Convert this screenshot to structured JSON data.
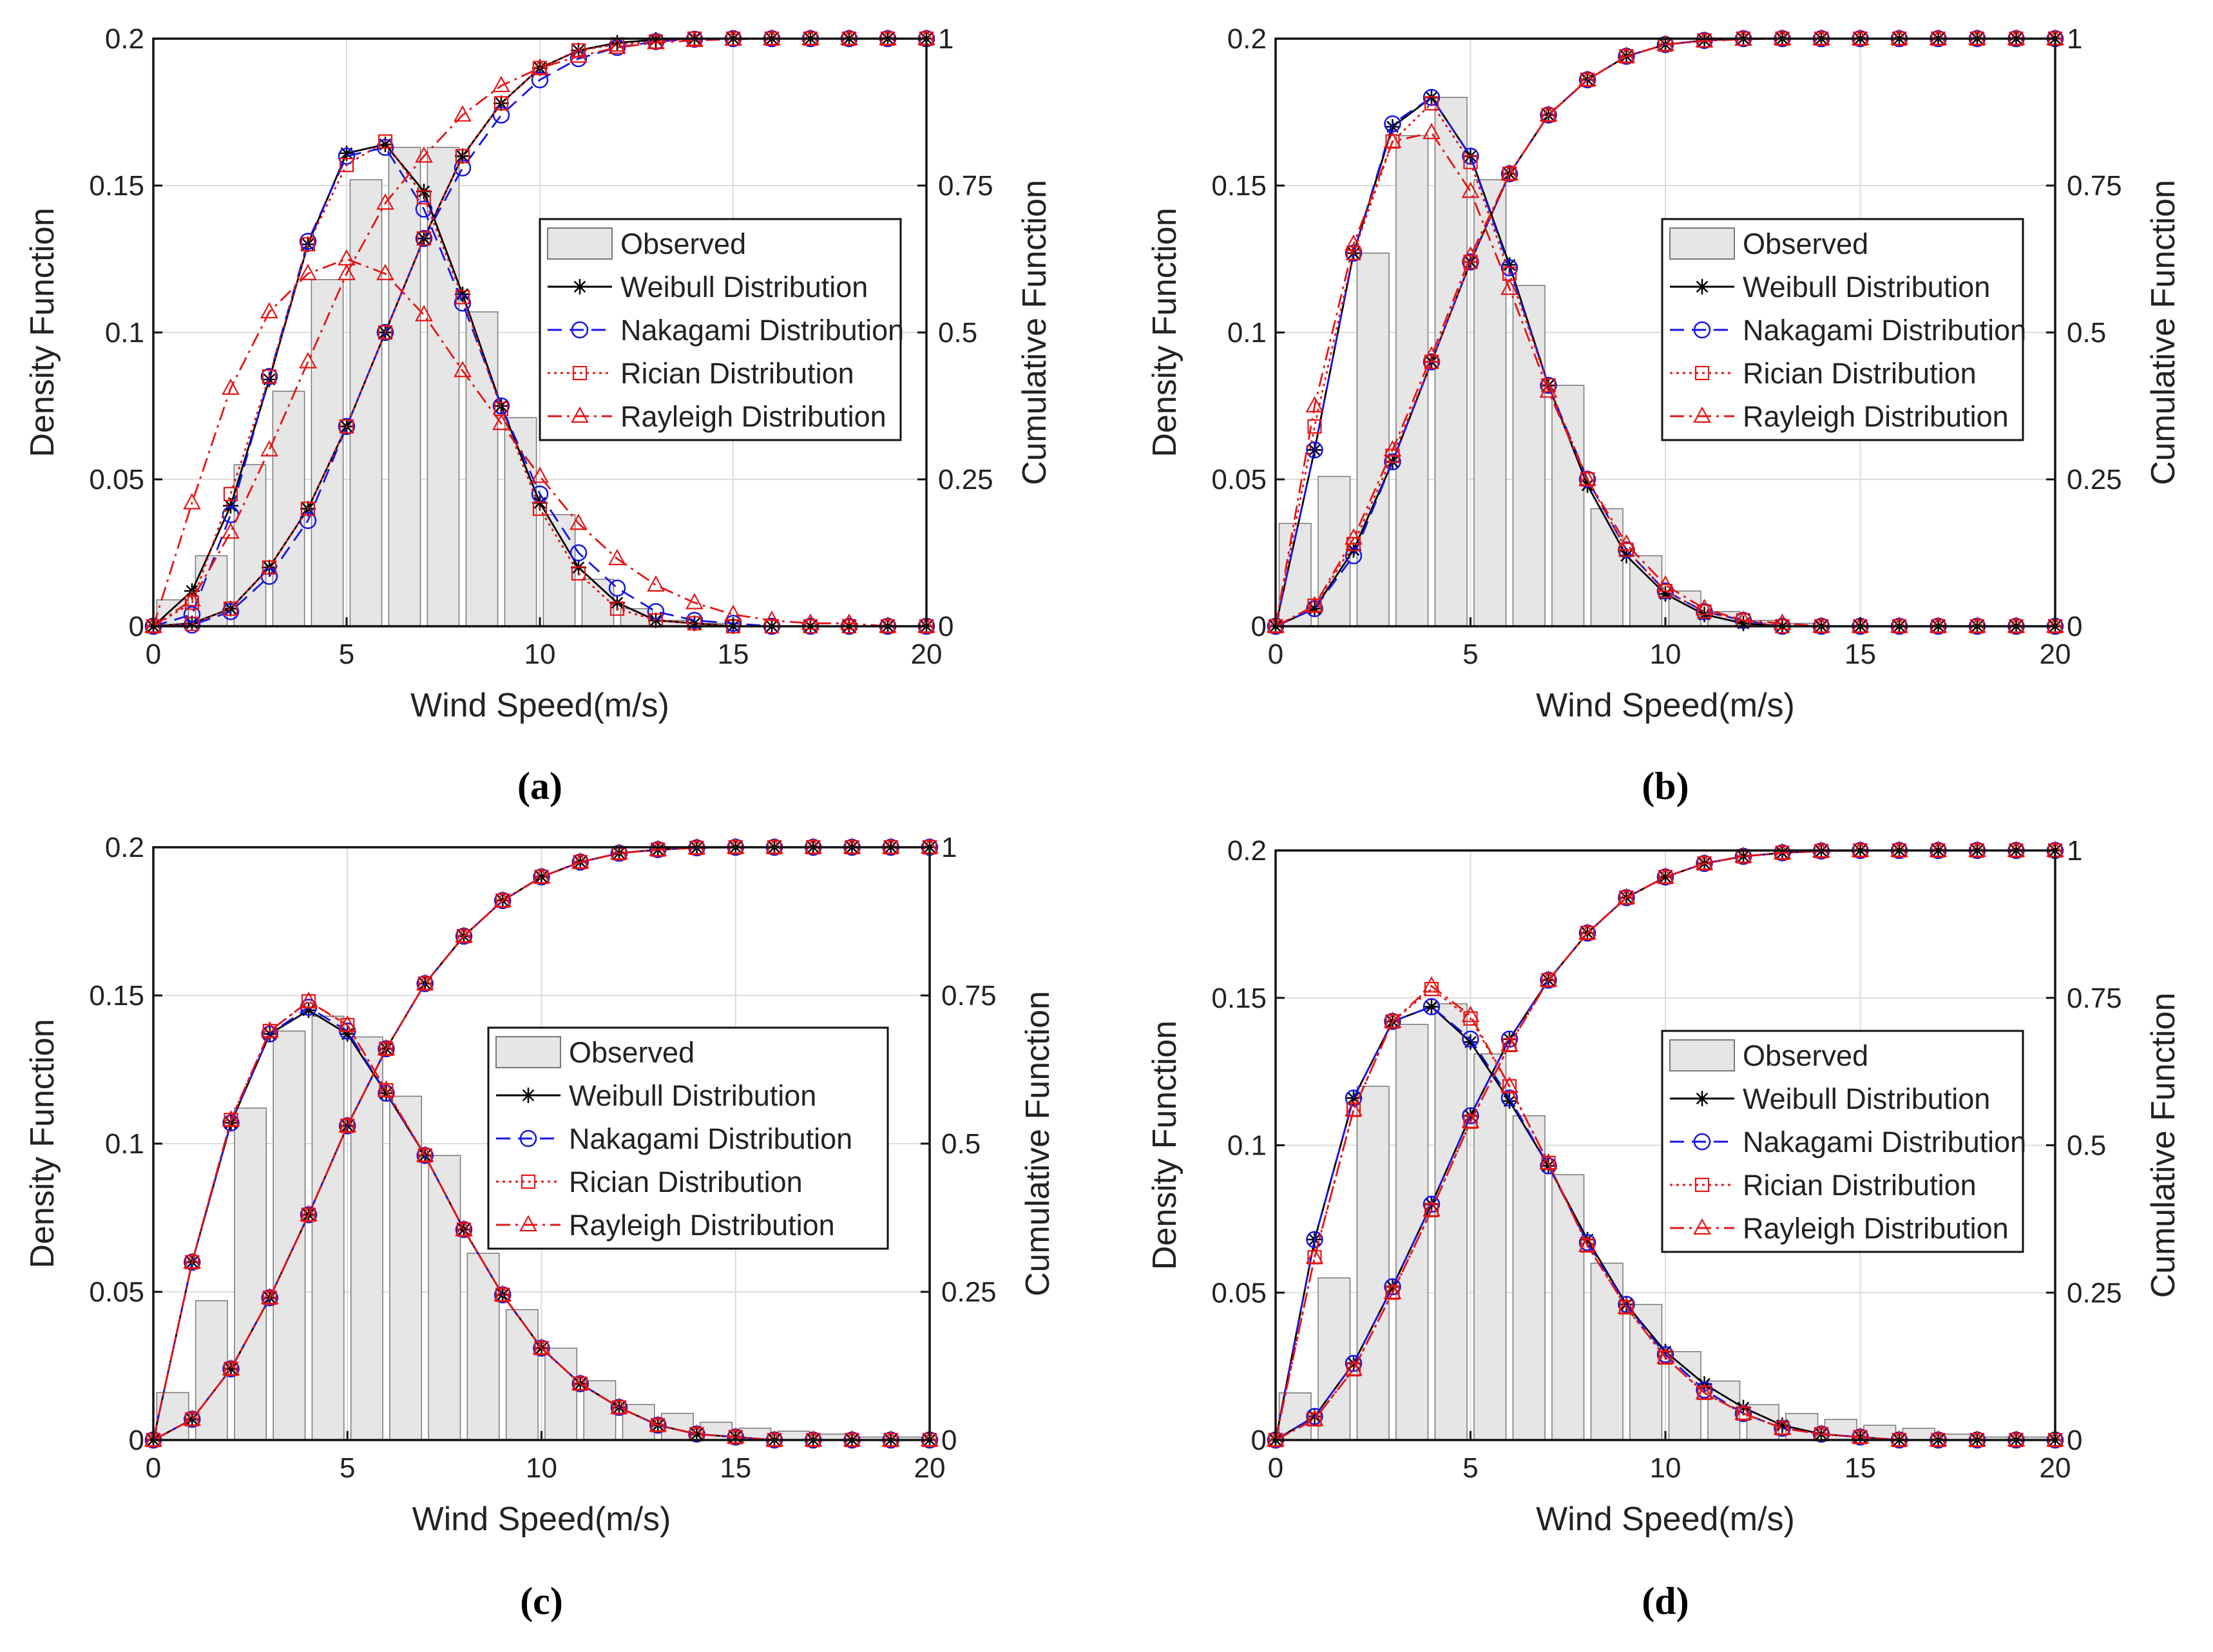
{
  "x_axis": {
    "min": 0,
    "max": 20,
    "ticks": [
      0,
      5,
      10,
      15,
      20
    ],
    "label": "Wind Speed(m/s)"
  },
  "y_left_axis": {
    "min": 0,
    "max": 0.2,
    "ticks": [
      0,
      0.05,
      0.1,
      0.15,
      0.2
    ],
    "tick_labels": [
      "0",
      "0.05",
      "0.1",
      "0.15",
      "0.2"
    ],
    "label": "Density Function"
  },
  "y_right_axis": {
    "min": 0,
    "max": 1,
    "ticks": [
      0,
      0.25,
      0.5,
      0.75,
      1
    ],
    "tick_labels": [
      "0",
      "0.25",
      "0.5",
      "0.75",
      "1"
    ],
    "label": "Cumulative Function"
  },
  "legend": [
    {
      "label": "Observed",
      "key": "observed"
    },
    {
      "label": "Weibull Distribution",
      "key": "weibull"
    },
    {
      "label": "Nakagami Distribution",
      "key": "nakagami"
    },
    {
      "label": "Rician Distribution",
      "key": "rician"
    },
    {
      "label": "Rayleigh Distribution",
      "key": "rayleigh"
    }
  ],
  "colors": {
    "weibull": "#000000",
    "nakagami": "#1414e6",
    "rician": "#e61414",
    "rayleigh": "#e61414",
    "bar_fill": "#e6e6e6",
    "bar_stroke": "#777777",
    "grid": "#dcdcdc"
  },
  "chart_data": [
    {
      "type": "bar",
      "panel": "a",
      "caption": "(a)",
      "x": [
        0,
        1,
        2,
        3,
        4,
        5,
        6,
        7,
        8,
        9,
        10,
        11,
        12,
        13,
        14,
        15,
        16,
        17,
        18,
        19,
        20
      ],
      "bar_centers": [
        0.5,
        1.5,
        2.5,
        3.5,
        4.5,
        5.5,
        6.5,
        7.5,
        8.5,
        9.5,
        10.5,
        11.5,
        12.5,
        13.5,
        14.5,
        15.5,
        16.5,
        17.5,
        18.5,
        19.5
      ],
      "observed": [
        0.009,
        0.024,
        0.055,
        0.08,
        0.118,
        0.152,
        0.163,
        0.163,
        0.107,
        0.071,
        0.038,
        0.016,
        0.006,
        0.002,
        0.001,
        0,
        0,
        0,
        0,
        0
      ],
      "series": [
        {
          "name": "Weibull Distribution",
          "key": "weibull",
          "pdf": [
            0,
            0.012,
            0.041,
            0.084,
            0.13,
            0.161,
            0.164,
            0.148,
            0.113,
            0.075,
            0.042,
            0.02,
            0.008,
            0.002,
            0.001,
            0,
            0,
            0,
            0,
            0,
            0
          ],
          "cdf": [
            0,
            0.005,
            0.03,
            0.1,
            0.2,
            0.34,
            0.5,
            0.66,
            0.8,
            0.89,
            0.95,
            0.98,
            0.993,
            0.998,
            1,
            1,
            1,
            1,
            1,
            1,
            1
          ]
        },
        {
          "name": "Nakagami Distribution",
          "key": "nakagami",
          "pdf": [
            0,
            0.004,
            0.038,
            0.085,
            0.131,
            0.16,
            0.163,
            0.142,
            0.11,
            0.075,
            0.045,
            0.025,
            0.013,
            0.005,
            0.002,
            0.001,
            0,
            0,
            0,
            0,
            0
          ],
          "cdf": [
            0,
            0.002,
            0.025,
            0.085,
            0.18,
            0.34,
            0.5,
            0.66,
            0.78,
            0.87,
            0.93,
            0.966,
            0.985,
            0.995,
            0.999,
            1,
            1,
            1,
            1,
            1,
            1
          ]
        },
        {
          "name": "Rician Distribution",
          "key": "rician",
          "pdf": [
            0,
            0.008,
            0.045,
            0.085,
            0.13,
            0.157,
            0.165,
            0.146,
            0.112,
            0.074,
            0.04,
            0.018,
            0.006,
            0.002,
            0.001,
            0,
            0,
            0,
            0,
            0,
            0
          ],
          "cdf": [
            0,
            0.004,
            0.03,
            0.1,
            0.2,
            0.34,
            0.5,
            0.66,
            0.8,
            0.89,
            0.95,
            0.98,
            0.99,
            0.995,
            1,
            1,
            1,
            1,
            1,
            1,
            1
          ]
        },
        {
          "name": "Rayleigh Distribution",
          "key": "rayleigh",
          "pdf": [
            0,
            0.042,
            0.081,
            0.107,
            0.12,
            0.125,
            0.12,
            0.106,
            0.087,
            0.069,
            0.051,
            0.035,
            0.023,
            0.014,
            0.008,
            0.004,
            0.002,
            0.001,
            0.001,
            0,
            0
          ],
          "cdf": [
            0,
            0.045,
            0.16,
            0.3,
            0.45,
            0.6,
            0.72,
            0.8,
            0.87,
            0.92,
            0.95,
            0.97,
            0.985,
            0.993,
            0.997,
            0.999,
            1,
            1,
            1,
            1,
            1
          ]
        }
      ]
    },
    {
      "type": "bar",
      "panel": "b",
      "caption": "(b)",
      "x": [
        0,
        1,
        2,
        3,
        4,
        5,
        6,
        7,
        8,
        9,
        10,
        11,
        12,
        13,
        14,
        15,
        16,
        17,
        18,
        19,
        20
      ],
      "bar_centers": [
        0.5,
        1.5,
        2.5,
        3.5,
        4.5,
        5.5,
        6.5,
        7.5,
        8.5,
        9.5,
        10.5,
        11.5,
        12.5,
        13.5,
        14.5,
        15.5,
        16.5,
        17.5,
        18.5,
        19.5
      ],
      "observed": [
        0.035,
        0.051,
        0.127,
        0.167,
        0.18,
        0.152,
        0.116,
        0.082,
        0.04,
        0.024,
        0.012,
        0.005,
        0.002,
        0.001,
        0,
        0,
        0,
        0,
        0,
        0
      ],
      "series": [
        {
          "name": "Weibull Distribution",
          "key": "weibull",
          "pdf": [
            0,
            0.06,
            0.127,
            0.17,
            0.18,
            0.16,
            0.123,
            0.082,
            0.048,
            0.024,
            0.011,
            0.004,
            0.001,
            0,
            0,
            0,
            0,
            0,
            0,
            0,
            0
          ],
          "cdf": [
            0,
            0.03,
            0.13,
            0.28,
            0.45,
            0.62,
            0.77,
            0.87,
            0.93,
            0.97,
            0.99,
            0.997,
            1,
            1,
            1,
            1,
            1,
            1,
            1,
            1,
            1
          ]
        },
        {
          "name": "Nakagami Distribution",
          "key": "nakagami",
          "pdf": [
            0,
            0.06,
            0.127,
            0.171,
            0.18,
            0.16,
            0.122,
            0.082,
            0.05,
            0.026,
            0.012,
            0.005,
            0.002,
            0,
            0,
            0,
            0,
            0,
            0,
            0,
            0
          ],
          "cdf": [
            0,
            0.03,
            0.12,
            0.28,
            0.45,
            0.62,
            0.77,
            0.87,
            0.93,
            0.97,
            0.99,
            0.997,
            1,
            1,
            1,
            1,
            1,
            1,
            1,
            1,
            1
          ]
        },
        {
          "name": "Rician Distribution",
          "key": "rician",
          "pdf": [
            0,
            0.068,
            0.127,
            0.165,
            0.178,
            0.158,
            0.12,
            0.082,
            0.05,
            0.026,
            0.012,
            0.005,
            0.002,
            0,
            0,
            0,
            0,
            0,
            0,
            0,
            0
          ],
          "cdf": [
            0,
            0.035,
            0.14,
            0.29,
            0.45,
            0.62,
            0.77,
            0.87,
            0.93,
            0.97,
            0.99,
            0.997,
            1,
            1,
            1,
            1,
            1,
            1,
            1,
            1,
            1
          ]
        },
        {
          "name": "Rayleigh Distribution",
          "key": "rayleigh",
          "pdf": [
            0,
            0.075,
            0.13,
            0.165,
            0.168,
            0.148,
            0.115,
            0.08,
            0.05,
            0.028,
            0.014,
            0.006,
            0.002,
            0.001,
            0,
            0,
            0,
            0,
            0,
            0,
            0
          ],
          "cdf": [
            0,
            0.035,
            0.15,
            0.3,
            0.46,
            0.63,
            0.77,
            0.87,
            0.93,
            0.97,
            0.99,
            0.996,
            0.999,
            1,
            1,
            1,
            1,
            1,
            1,
            1,
            1
          ]
        }
      ]
    },
    {
      "type": "bar",
      "panel": "c",
      "caption": "(c)",
      "x": [
        0,
        1,
        2,
        3,
        4,
        5,
        6,
        7,
        8,
        9,
        10,
        11,
        12,
        13,
        14,
        15,
        16,
        17,
        18,
        19,
        20
      ],
      "bar_centers": [
        0.5,
        1.5,
        2.5,
        3.5,
        4.5,
        5.5,
        6.5,
        7.5,
        8.5,
        9.5,
        10.5,
        11.5,
        12.5,
        13.5,
        14.5,
        15.5,
        16.5,
        17.5,
        18.5,
        19.5
      ],
      "observed": [
        0.016,
        0.047,
        0.112,
        0.138,
        0.143,
        0.136,
        0.116,
        0.096,
        0.063,
        0.044,
        0.031,
        0.02,
        0.012,
        0.009,
        0.006,
        0.004,
        0.003,
        0.002,
        0.001,
        0.001
      ],
      "series": [
        {
          "name": "Weibull Distribution",
          "key": "weibull",
          "pdf": [
            0,
            0.06,
            0.107,
            0.137,
            0.145,
            0.137,
            0.117,
            0.096,
            0.071,
            0.049,
            0.031,
            0.019,
            0.011,
            0.005,
            0.002,
            0.001,
            0,
            0,
            0,
            0,
            0
          ],
          "cdf": [
            0,
            0.035,
            0.12,
            0.24,
            0.38,
            0.53,
            0.66,
            0.77,
            0.85,
            0.91,
            0.95,
            0.975,
            0.99,
            0.996,
            0.999,
            1,
            1,
            1,
            1,
            1,
            1
          ]
        },
        {
          "name": "Nakagami Distribution",
          "key": "nakagami",
          "pdf": [
            0,
            0.06,
            0.107,
            0.137,
            0.146,
            0.138,
            0.117,
            0.096,
            0.071,
            0.049,
            0.031,
            0.019,
            0.011,
            0.005,
            0.002,
            0.001,
            0,
            0,
            0,
            0,
            0
          ],
          "cdf": [
            0,
            0.035,
            0.12,
            0.24,
            0.38,
            0.53,
            0.66,
            0.77,
            0.85,
            0.91,
            0.95,
            0.975,
            0.99,
            0.996,
            0.999,
            1,
            1,
            1,
            1,
            1,
            1
          ]
        },
        {
          "name": "Rician Distribution",
          "key": "rician",
          "pdf": [
            0,
            0.06,
            0.108,
            0.138,
            0.148,
            0.14,
            0.118,
            0.096,
            0.071,
            0.049,
            0.031,
            0.019,
            0.011,
            0.005,
            0.002,
            0.001,
            0,
            0,
            0,
            0,
            0
          ],
          "cdf": [
            0,
            0.035,
            0.12,
            0.24,
            0.38,
            0.53,
            0.66,
            0.77,
            0.85,
            0.91,
            0.95,
            0.975,
            0.99,
            0.996,
            0.999,
            1,
            1,
            1,
            1,
            1,
            1
          ]
        },
        {
          "name": "Rayleigh Distribution",
          "key": "rayleigh",
          "pdf": [
            0,
            0.06,
            0.108,
            0.138,
            0.148,
            0.14,
            0.118,
            0.096,
            0.071,
            0.049,
            0.031,
            0.019,
            0.011,
            0.005,
            0.002,
            0.001,
            0,
            0,
            0,
            0,
            0
          ],
          "cdf": [
            0,
            0.035,
            0.12,
            0.24,
            0.38,
            0.53,
            0.66,
            0.77,
            0.85,
            0.91,
            0.95,
            0.975,
            0.99,
            0.996,
            0.999,
            1,
            1,
            1,
            1,
            1,
            1
          ]
        }
      ]
    },
    {
      "type": "bar",
      "panel": "d",
      "caption": "(d)",
      "x": [
        0,
        1,
        2,
        3,
        4,
        5,
        6,
        7,
        8,
        9,
        10,
        11,
        12,
        13,
        14,
        15,
        16,
        17,
        18,
        19,
        20
      ],
      "bar_centers": [
        0.5,
        1.5,
        2.5,
        3.5,
        4.5,
        5.5,
        6.5,
        7.5,
        8.5,
        9.5,
        10.5,
        11.5,
        12.5,
        13.5,
        14.5,
        15.5,
        16.5,
        17.5,
        18.5,
        19.5
      ],
      "observed": [
        0.016,
        0.055,
        0.12,
        0.141,
        0.148,
        0.131,
        0.11,
        0.09,
        0.06,
        0.046,
        0.03,
        0.02,
        0.012,
        0.009,
        0.007,
        0.005,
        0.004,
        0.002,
        0.001,
        0.001
      ],
      "series": [
        {
          "name": "Weibull Distribution",
          "key": "weibull",
          "pdf": [
            0,
            0.068,
            0.116,
            0.142,
            0.147,
            0.135,
            0.115,
            0.093,
            0.068,
            0.046,
            0.03,
            0.019,
            0.011,
            0.005,
            0.002,
            0.001,
            0,
            0,
            0,
            0,
            0
          ],
          "cdf": [
            0,
            0.04,
            0.13,
            0.26,
            0.4,
            0.55,
            0.68,
            0.78,
            0.86,
            0.92,
            0.955,
            0.978,
            0.99,
            0.996,
            0.999,
            1,
            1,
            1,
            1,
            1,
            1
          ]
        },
        {
          "name": "Nakagami Distribution",
          "key": "nakagami",
          "pdf": [
            0,
            0.068,
            0.116,
            0.142,
            0.147,
            0.136,
            0.116,
            0.093,
            0.067,
            0.046,
            0.029,
            0.017,
            0.009,
            0.004,
            0.002,
            0.001,
            0,
            0,
            0,
            0,
            0
          ],
          "cdf": [
            0,
            0.04,
            0.13,
            0.26,
            0.4,
            0.55,
            0.68,
            0.78,
            0.86,
            0.92,
            0.955,
            0.978,
            0.99,
            0.996,
            0.999,
            1,
            1,
            1,
            1,
            1,
            1
          ]
        },
        {
          "name": "Rician Distribution",
          "key": "rician",
          "pdf": [
            0,
            0.062,
            0.112,
            0.142,
            0.153,
            0.143,
            0.12,
            0.094,
            0.066,
            0.045,
            0.028,
            0.016,
            0.009,
            0.004,
            0.002,
            0.001,
            0,
            0,
            0,
            0,
            0
          ],
          "cdf": [
            0,
            0.035,
            0.12,
            0.25,
            0.39,
            0.54,
            0.67,
            0.78,
            0.86,
            0.92,
            0.955,
            0.978,
            0.99,
            0.996,
            0.999,
            1,
            1,
            1,
            1,
            1,
            1
          ]
        },
        {
          "name": "Rayleigh Distribution",
          "key": "rayleigh",
          "pdf": [
            0,
            0.062,
            0.112,
            0.142,
            0.154,
            0.144,
            0.12,
            0.094,
            0.066,
            0.045,
            0.028,
            0.016,
            0.009,
            0.004,
            0.002,
            0.001,
            0,
            0,
            0,
            0,
            0
          ],
          "cdf": [
            0,
            0.035,
            0.12,
            0.25,
            0.39,
            0.54,
            0.67,
            0.78,
            0.86,
            0.92,
            0.955,
            0.978,
            0.99,
            0.996,
            0.999,
            1,
            1,
            1,
            1,
            1,
            1
          ]
        }
      ]
    }
  ]
}
